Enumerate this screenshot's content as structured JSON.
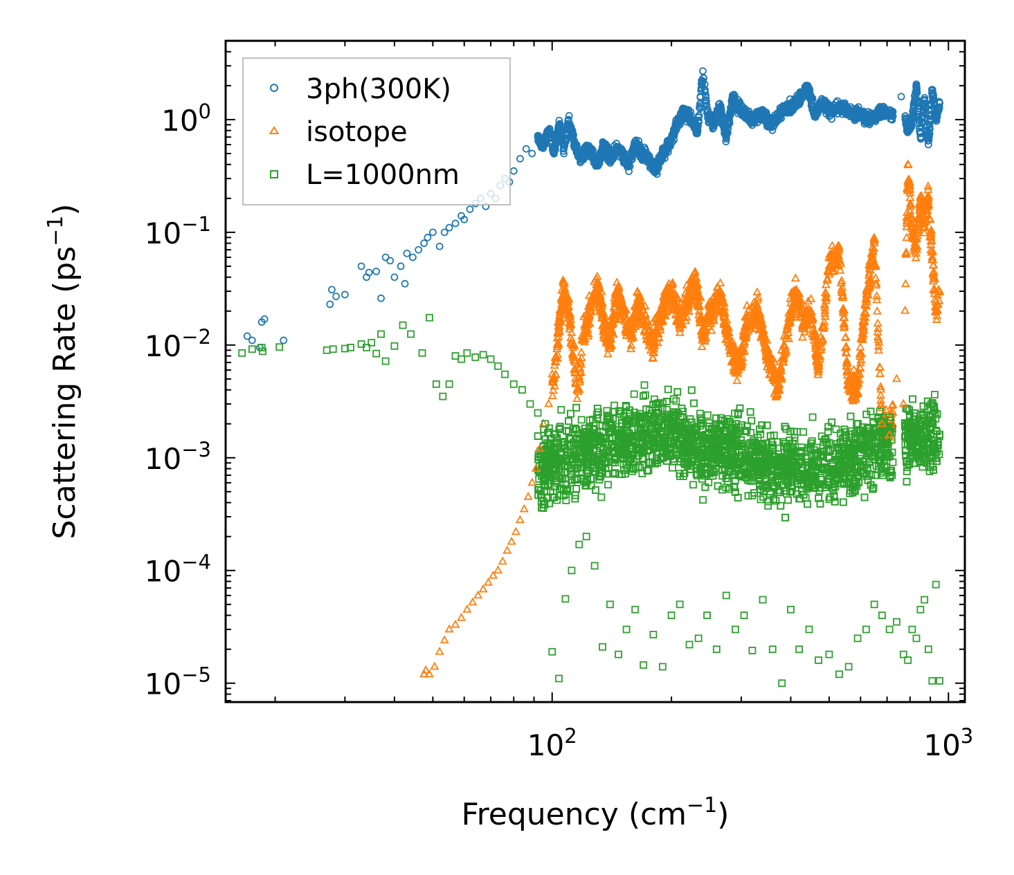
{
  "chart_data": {
    "type": "scatter",
    "xscale": "log",
    "yscale": "log",
    "xlim": [
      15,
      1100
    ],
    "ylim": [
      6.8e-06,
      5
    ],
    "xlabel": "Frequency (cm",
    "xlabel_sup": "−1",
    "xlabel_close": ")",
    "ylabel": "Scattering Rate (ps",
    "ylabel_sup": "−1",
    "ylabel_close": ")",
    "x_ticks": [
      {
        "value": 100,
        "base": "10",
        "exp": "2"
      },
      {
        "value": 1000,
        "base": "10",
        "exp": "3"
      }
    ],
    "y_ticks": [
      {
        "value": 1,
        "base": "10",
        "exp": "0"
      },
      {
        "value": 0.1,
        "base": "10",
        "exp": "−1"
      },
      {
        "value": 0.01,
        "base": "10",
        "exp": "−2"
      },
      {
        "value": 0.001,
        "base": "10",
        "exp": "−3"
      },
      {
        "value": 0.0001,
        "base": "10",
        "exp": "−4"
      },
      {
        "value": 1e-05,
        "base": "10",
        "exp": "−5"
      }
    ],
    "legend_position": "top-left",
    "series": [
      {
        "name": "3ph(300K)",
        "marker": "circle",
        "color": "#1f77b4",
        "x": [
          17.0,
          17.5,
          18.3,
          18.5,
          18.8,
          21.0,
          27.5,
          27.8,
          28.5,
          30.0,
          33.0,
          34.0,
          34.5,
          36.0,
          37.0,
          38.0,
          39.0,
          40.0,
          41.5,
          42.5,
          43.0,
          44.5,
          46.0,
          47.5,
          48.5,
          50.0,
          52.0,
          53.5,
          55.0,
          57.0,
          59.0,
          60.0,
          62.0,
          64.0,
          66.0,
          68.0,
          70.0,
          72.0,
          74.0,
          76.0,
          78.0,
          80.0,
          83.0,
          86.0,
          89.0,
          92.0,
          95.0,
          98.0,
          101.0,
          104.0,
          107.0,
          110.0,
          114.0,
          118.0,
          122.0,
          126.0,
          130.0,
          135.0,
          140.0,
          145.0,
          150.0,
          156.0,
          162.0,
          168.0,
          175.0,
          182.0,
          190.0,
          198.0,
          206.0,
          215.0,
          225.0,
          233.0,
          240.0,
          247.0,
          255.0,
          265.0,
          275.0,
          285.0,
          300.0,
          320.0,
          340.0,
          360.0,
          380.0,
          400.0,
          420.0,
          440.0,
          460.0,
          480.0,
          500.0,
          530.0,
          560.0,
          600.0,
          640.0,
          680.0,
          720.0,
          760.0,
          790.0,
          810.0,
          830.0,
          850.0,
          870.0,
          890.0,
          910.0,
          930.0,
          950.0
        ],
        "y": [
          0.012,
          0.011,
          0.0095,
          0.016,
          0.017,
          0.011,
          0.023,
          0.031,
          0.027,
          0.028,
          0.05,
          0.04,
          0.044,
          0.045,
          0.026,
          0.06,
          0.056,
          0.04,
          0.05,
          0.035,
          0.065,
          0.06,
          0.07,
          0.08,
          0.09,
          0.1,
          0.075,
          0.1,
          0.11,
          0.12,
          0.14,
          0.13,
          0.16,
          0.18,
          0.2,
          0.17,
          0.22,
          0.2,
          0.26,
          0.3,
          0.28,
          0.35,
          0.45,
          0.55,
          0.5,
          0.7,
          0.6,
          0.8,
          0.5,
          0.9,
          0.55,
          1.0,
          0.6,
          0.45,
          0.55,
          0.5,
          0.4,
          0.6,
          0.45,
          0.55,
          0.5,
          0.4,
          0.6,
          0.5,
          0.45,
          0.35,
          0.5,
          0.6,
          0.9,
          1.2,
          1.0,
          0.8,
          2.7,
          1.1,
          0.9,
          1.3,
          0.7,
          1.5,
          1.2,
          1.0,
          1.1,
          0.9,
          1.2,
          1.3,
          1.5,
          2.0,
          1.1,
          1.4,
          1.2,
          1.3,
          1.2,
          1.1,
          1.0,
          1.2,
          1.1,
          1.6,
          0.8,
          1.0,
          2.0,
          0.7,
          1.5,
          0.6,
          1.8,
          1.0,
          1.4
        ]
      },
      {
        "name": "isotope",
        "marker": "triangle",
        "color": "#ff7f0e",
        "x": [
          47.5,
          48.0,
          49.0,
          50.5,
          52.0,
          53.5,
          55.0,
          57.0,
          59.0,
          61.0,
          63.0,
          65.0,
          67.0,
          69.0,
          71.0,
          73.0,
          75.0,
          77.0,
          79.0,
          81.0,
          83.0,
          85.0,
          87.0,
          89.0,
          91.0,
          93.0,
          95.0,
          98.0,
          101.0,
          103.0,
          105.0,
          107.0,
          110.0,
          113.0,
          116.0,
          120.0,
          125.0,
          130.0,
          135.0,
          140.0,
          145.0,
          150.0,
          158.0,
          165.0,
          172.0,
          180.0,
          190.0,
          200.0,
          210.0,
          220.0,
          230.0,
          240.0,
          250.0,
          265.0,
          280.0,
          295.0,
          310.0,
          330.0,
          350.0,
          370.0,
          390.0,
          410.0,
          430.0,
          450.0,
          470.0,
          500.0,
          530.0,
          560.0,
          590.0,
          620.0,
          650.0,
          680.0,
          710.0,
          740.0,
          770.0,
          790.0,
          810.0,
          830.0,
          850.0,
          870.0,
          890.0,
          910.0,
          930.0,
          950.0
        ],
        "y": [
          1.2e-05,
          1.3e-05,
          1.2e-05,
          1.4e-05,
          1.9e-05,
          2.4e-05,
          3e-05,
          3.3e-05,
          3.8e-05,
          4.5e-05,
          5.2e-05,
          6e-05,
          6.8e-05,
          7.8e-05,
          9e-05,
          0.0001,
          0.00012,
          0.00015,
          0.00018,
          0.00022,
          0.00028,
          0.00035,
          0.00045,
          0.0006,
          0.0008,
          0.0012,
          0.002,
          0.003,
          0.005,
          0.01,
          0.02,
          0.03,
          0.022,
          0.008,
          0.004,
          0.012,
          0.02,
          0.035,
          0.015,
          0.01,
          0.03,
          0.02,
          0.012,
          0.025,
          0.015,
          0.01,
          0.02,
          0.03,
          0.015,
          0.025,
          0.04,
          0.012,
          0.02,
          0.03,
          0.01,
          0.006,
          0.015,
          0.02,
          0.008,
          0.004,
          0.012,
          0.03,
          0.015,
          0.02,
          0.006,
          0.05,
          0.07,
          0.004,
          0.0045,
          0.025,
          0.08,
          0.002,
          0.0016,
          0.005,
          0.003,
          0.4,
          0.1,
          0.07,
          0.2,
          0.12,
          0.2,
          0.06,
          0.02,
          0.03
        ]
      },
      {
        "name": "L=1000nm",
        "marker": "square",
        "color": "#2ca02c",
        "x": [
          16.5,
          17.5,
          18.5,
          18.6,
          20.5,
          27.0,
          28.0,
          30.0,
          31.0,
          33.0,
          34.0,
          35.0,
          36.0,
          37.0,
          38.0,
          40.0,
          42.0,
          44.0,
          47.0,
          49.0,
          51.0,
          53.0,
          55.0,
          57.0,
          59.0,
          61.0,
          64.0,
          67.0,
          70.0,
          73.0,
          76.0,
          80.0,
          84.0,
          88.0,
          92.0,
          96.0,
          100.0,
          104.0,
          108.0,
          112.0,
          117.0,
          122.0,
          128.0,
          134.0,
          140.0,
          147.0,
          154.0,
          162.0,
          170.0,
          180.0,
          190.0,
          200.0,
          210.0,
          222.0,
          234.0,
          246.0,
          260.0,
          275.0,
          290.0,
          305.0,
          320.0,
          340.0,
          360.0,
          380.0,
          400.0,
          420.0,
          445.0,
          470.0,
          500.0,
          530.0,
          560.0,
          590.0,
          620.0,
          650.0,
          680.0,
          710.0,
          740.0,
          770.0,
          790.0,
          810.0,
          830.0,
          850.0,
          870.0,
          890.0,
          910.0,
          930.0,
          950.0
        ],
        "y": [
          0.0085,
          0.0092,
          0.0095,
          0.0088,
          0.0096,
          0.009,
          0.0092,
          0.0093,
          0.0095,
          0.0102,
          0.0095,
          0.0105,
          0.0084,
          0.0125,
          0.0072,
          0.0098,
          0.015,
          0.0125,
          0.0085,
          0.0175,
          0.0045,
          0.0035,
          0.0045,
          0.008,
          0.0075,
          0.0085,
          0.0078,
          0.0082,
          0.0075,
          0.0065,
          0.0055,
          0.0045,
          0.004,
          0.003,
          0.0025,
          0.002,
          1.9e-05,
          1.1e-05,
          5.6e-05,
          0.0001,
          0.00017,
          0.0002,
          0.00011,
          2.1e-05,
          5e-05,
          1.8e-05,
          3e-05,
          4.5e-05,
          1.45e-05,
          2.7e-05,
          1.4e-05,
          4e-05,
          5e-05,
          2.2e-05,
          2.5e-05,
          4e-05,
          2e-05,
          6e-05,
          3e-05,
          4e-05,
          1.95e-05,
          5.5e-05,
          2e-05,
          1e-05,
          4.5e-05,
          2e-05,
          3e-05,
          1.6e-05,
          1.8e-05,
          1.2e-05,
          1.4e-05,
          2.5e-05,
          3e-05,
          5e-05,
          4e-05,
          3e-05,
          3.5e-05,
          1.8e-05,
          1.6e-05,
          3e-05,
          2.5e-05,
          4.5e-05,
          5.5e-05,
          2e-05,
          1.05e-05,
          7.5e-05,
          1.05e-05
        ]
      }
    ]
  }
}
